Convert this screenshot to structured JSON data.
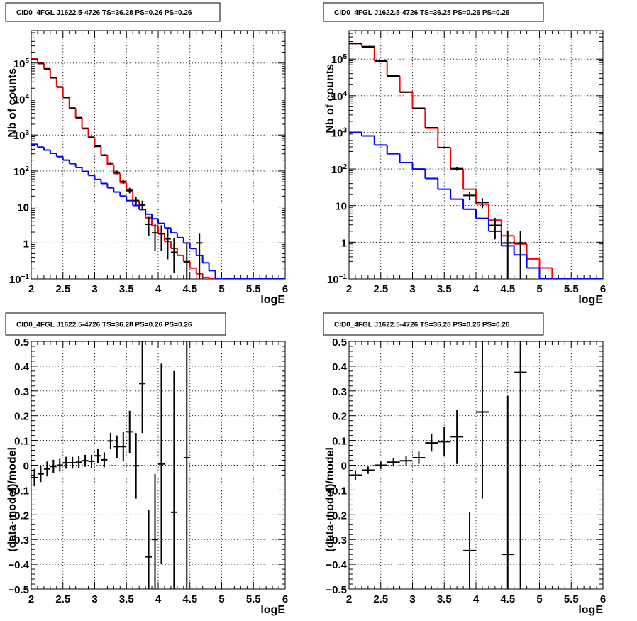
{
  "chart_data": [
    {
      "type": "line",
      "title": "CID0_4FGL J1622.5-4726 TS=36.28 PS=0.26 PS=0.26",
      "xlabel": "logE",
      "ylabel": "Nb of counts",
      "xlim": [
        2,
        6
      ],
      "ylim": [
        0.1,
        800000
      ],
      "yscale": "log",
      "grid": true,
      "x_ticks": [
        "2",
        "2.5",
        "3",
        "3.5",
        "4",
        "4.5",
        "5",
        "5.5",
        "6"
      ],
      "y_ticks": [
        {
          "value": 0.1,
          "label": "10",
          "exp": "−1"
        },
        {
          "value": 1,
          "label": "1",
          "exp": ""
        },
        {
          "value": 10,
          "label": "10",
          "exp": ""
        },
        {
          "value": 100,
          "label": "10",
          "exp": "2"
        },
        {
          "value": 1000,
          "label": "10",
          "exp": "3"
        },
        {
          "value": 10000,
          "label": "10",
          "exp": "4"
        },
        {
          "value": 100000,
          "label": "10",
          "exp": "5"
        }
      ],
      "bin_edges": [
        2.0,
        2.1,
        2.2,
        2.3,
        2.4,
        2.5,
        2.6,
        2.7,
        2.8,
        2.9,
        3.0,
        3.1,
        3.2,
        3.3,
        3.4,
        3.5,
        3.6,
        3.7,
        3.8,
        3.9,
        4.0,
        4.1,
        4.2,
        4.3,
        4.4,
        4.5,
        4.6,
        4.7,
        4.8,
        4.9,
        5.0,
        5.1,
        5.2,
        5.3,
        5.4,
        5.5,
        5.6,
        5.7,
        5.8,
        5.9,
        6.0
      ],
      "series": [
        {
          "color": "#ff0000",
          "kind": "step",
          "values": [
            130000,
            100000,
            70000,
            40000,
            22000,
            11000,
            5500,
            3000,
            1500,
            850,
            480,
            270,
            150,
            85,
            47,
            27,
            15,
            8.5,
            5,
            3,
            1.8,
            1.1,
            0.7,
            0.45,
            0.3,
            0.2,
            0.14,
            0.11,
            0.1,
            0.1,
            0.1,
            0.1,
            0.1,
            0.1,
            0.1,
            0.1,
            0.1,
            0.1,
            0.1,
            0.1
          ]
        },
        {
          "color": "#0000ff",
          "kind": "step",
          "values": [
            550,
            460,
            380,
            310,
            250,
            200,
            160,
            125,
            97,
            75,
            58,
            45,
            34,
            26,
            20,
            15,
            11,
            8.5,
            6.3,
            4.7,
            3.5,
            2.6,
            1.9,
            1.4,
            1.0,
            0.7,
            0.45,
            0.28,
            0.17,
            0.1,
            0.1,
            0.1,
            0.1,
            0.1,
            0.1,
            0.1,
            0.1,
            0.1,
            0.1,
            0.1
          ]
        },
        {
          "color": "#000000",
          "kind": "errorbar",
          "xerr": 0.05,
          "points": [
            {
              "x": 2.05,
              "y": 125000,
              "lo": 124000,
              "hi": 126000
            },
            {
              "x": 2.15,
              "y": 97000,
              "lo": 96000,
              "hi": 98000
            },
            {
              "x": 2.25,
              "y": 68000,
              "lo": 67500,
              "hi": 68500
            },
            {
              "x": 2.35,
              "y": 39000,
              "lo": 38600,
              "hi": 39400
            },
            {
              "x": 2.45,
              "y": 21500,
              "lo": 21200,
              "hi": 21800
            },
            {
              "x": 2.55,
              "y": 11000,
              "lo": 10800,
              "hi": 11200
            },
            {
              "x": 2.65,
              "y": 5600,
              "lo": 5500,
              "hi": 5700
            },
            {
              "x": 2.75,
              "y": 3050,
              "lo": 2990,
              "hi": 3110
            },
            {
              "x": 2.85,
              "y": 1540,
              "lo": 1500,
              "hi": 1580
            },
            {
              "x": 2.95,
              "y": 870,
              "lo": 840,
              "hi": 900
            },
            {
              "x": 3.05,
              "y": 490,
              "lo": 468,
              "hi": 512
            },
            {
              "x": 3.15,
              "y": 276,
              "lo": 260,
              "hi": 292
            },
            {
              "x": 3.25,
              "y": 165,
              "lo": 152,
              "hi": 178
            },
            {
              "x": 3.35,
              "y": 92,
              "lo": 82,
              "hi": 102
            },
            {
              "x": 3.45,
              "y": 51,
              "lo": 44,
              "hi": 58
            },
            {
              "x": 3.55,
              "y": 29,
              "lo": 24,
              "hi": 34
            },
            {
              "x": 3.65,
              "y": 15,
              "lo": 11.5,
              "hi": 19
            },
            {
              "x": 3.75,
              "y": 11.3,
              "lo": 8,
              "hi": 15
            },
            {
              "x": 3.85,
              "y": 3.3,
              "lo": 1.6,
              "hi": 5.3
            },
            {
              "x": 3.95,
              "y": 1.9,
              "lo": 0.6,
              "hi": 3.3
            },
            {
              "x": 4.05,
              "y": 1.8,
              "lo": 0.6,
              "hi": 3.1
            },
            {
              "x": 4.15,
              "y": 1.3,
              "lo": 0.35,
              "hi": 2.7
            },
            {
              "x": 4.25,
              "y": 0.55,
              "lo": 0.15,
              "hi": 1.35
            },
            {
              "x": 4.45,
              "y": 0.3,
              "lo": 0.1,
              "hi": 1.0
            },
            {
              "x": 4.65,
              "y": 1.0,
              "lo": 0.1,
              "hi": 1.8
            }
          ]
        }
      ]
    },
    {
      "type": "line",
      "title": "CID0_4FGL J1622.5-4726 TS=36.28 PS=0.26 PS=0.26",
      "xlabel": "logE",
      "ylabel": "Nb of counts",
      "xlim": [
        2,
        6
      ],
      "ylim": [
        0.1,
        600000
      ],
      "yscale": "log",
      "grid": true,
      "x_ticks": [
        "2",
        "2.5",
        "3",
        "3.5",
        "4",
        "4.5",
        "5",
        "5.5",
        "6"
      ],
      "y_ticks": [
        {
          "value": 0.1,
          "label": "10",
          "exp": "−1"
        },
        {
          "value": 1,
          "label": "1",
          "exp": ""
        },
        {
          "value": 10,
          "label": "10",
          "exp": ""
        },
        {
          "value": 100,
          "label": "10",
          "exp": "2"
        },
        {
          "value": 1000,
          "label": "10",
          "exp": "3"
        },
        {
          "value": 10000,
          "label": "10",
          "exp": "4"
        },
        {
          "value": 100000,
          "label": "10",
          "exp": "5"
        }
      ],
      "bin_edges": [
        2.0,
        2.2,
        2.4,
        2.6,
        2.8,
        3.0,
        3.2,
        3.4,
        3.6,
        3.8,
        4.0,
        4.2,
        4.4,
        4.6,
        4.8,
        5.0,
        5.2,
        5.4,
        5.6,
        5.8,
        6.0
      ],
      "series": [
        {
          "color": "#ff0000",
          "kind": "step",
          "values": [
            270000,
            220000,
            90000,
            35000,
            12500,
            4500,
            1300,
            380,
            100,
            28,
            11,
            4,
            1.5,
            0.9,
            0.35,
            0.2,
            0.1,
            0.1,
            0.1,
            0.1
          ]
        },
        {
          "color": "#0000ff",
          "kind": "step",
          "values": [
            1000,
            800,
            450,
            260,
            150,
            100,
            55,
            28,
            15,
            8,
            4.5,
            2.0,
            0.8,
            0.45,
            0.2,
            0.1,
            0.1,
            0.1,
            0.1,
            0.1
          ]
        },
        {
          "color": "#000000",
          "kind": "errorbar",
          "xerr": 0.1,
          "points": [
            {
              "x": 2.1,
              "y": 265000,
              "lo": 263000,
              "hi": 267000
            },
            {
              "x": 2.3,
              "y": 215000,
              "lo": 213000,
              "hi": 217000
            },
            {
              "x": 2.5,
              "y": 88000,
              "lo": 87400,
              "hi": 88600
            },
            {
              "x": 2.7,
              "y": 34500,
              "lo": 34100,
              "hi": 34900
            },
            {
              "x": 2.9,
              "y": 12600,
              "lo": 12400,
              "hi": 12800
            },
            {
              "x": 3.1,
              "y": 4550,
              "lo": 4450,
              "hi": 4650
            },
            {
              "x": 3.3,
              "y": 1330,
              "lo": 1280,
              "hi": 1380
            },
            {
              "x": 3.5,
              "y": 385,
              "lo": 360,
              "hi": 410
            },
            {
              "x": 3.7,
              "y": 102,
              "lo": 90,
              "hi": 114
            },
            {
              "x": 3.9,
              "y": 19,
              "lo": 14,
              "hi": 24
            },
            {
              "x": 4.1,
              "y": 12.3,
              "lo": 8.5,
              "hi": 16
            },
            {
              "x": 4.3,
              "y": 2.9,
              "lo": 1.2,
              "hi": 4.6
            },
            {
              "x": 4.5,
              "y": 0.95,
              "lo": 0.1,
              "hi": 2.0
            },
            {
              "x": 4.7,
              "y": 0.95,
              "lo": 0.1,
              "hi": 2.0
            }
          ]
        }
      ]
    },
    {
      "type": "scatter",
      "title": "CID0_4FGL J1622.5-4726 TS=36.28 PS=0.26 PS=0.26",
      "xlabel": "logE",
      "ylabel": "(data-model)/model",
      "xlim": [
        2,
        6
      ],
      "ylim": [
        -0.5,
        0.5
      ],
      "yscale": "linear",
      "grid": true,
      "x_ticks": [
        "2",
        "2.5",
        "3",
        "3.5",
        "4",
        "4.5",
        "5",
        "5.5",
        "6"
      ],
      "y_ticks": [
        {
          "value": -0.5,
          "label": "−0.5",
          "exp": ""
        },
        {
          "value": -0.4,
          "label": "−0.4",
          "exp": ""
        },
        {
          "value": -0.3,
          "label": "−0.3",
          "exp": ""
        },
        {
          "value": -0.2,
          "label": "−0.2",
          "exp": ""
        },
        {
          "value": -0.1,
          "label": "−0.1",
          "exp": ""
        },
        {
          "value": 0,
          "label": "0",
          "exp": ""
        },
        {
          "value": 0.1,
          "label": "0.1",
          "exp": ""
        },
        {
          "value": 0.2,
          "label": "0.2",
          "exp": ""
        },
        {
          "value": 0.3,
          "label": "0.3",
          "exp": ""
        },
        {
          "value": 0.4,
          "label": "0.4",
          "exp": ""
        },
        {
          "value": 0.5,
          "label": "0.5",
          "exp": ""
        }
      ],
      "series": [
        {
          "color": "#000000",
          "kind": "errorbar",
          "xerr": 0.05,
          "points": [
            {
              "x": 2.05,
              "y": -0.05,
              "lo": -0.085,
              "hi": -0.015
            },
            {
              "x": 2.15,
              "y": -0.035,
              "lo": -0.068,
              "hi": -0.002
            },
            {
              "x": 2.25,
              "y": -0.015,
              "lo": -0.045,
              "hi": 0.015
            },
            {
              "x": 2.35,
              "y": -0.005,
              "lo": -0.032,
              "hi": 0.022
            },
            {
              "x": 2.45,
              "y": 0.0,
              "lo": -0.025,
              "hi": 0.025
            },
            {
              "x": 2.55,
              "y": 0.01,
              "lo": -0.014,
              "hi": 0.034
            },
            {
              "x": 2.65,
              "y": 0.01,
              "lo": -0.014,
              "hi": 0.034
            },
            {
              "x": 2.75,
              "y": 0.012,
              "lo": -0.012,
              "hi": 0.036
            },
            {
              "x": 2.85,
              "y": 0.018,
              "lo": -0.006,
              "hi": 0.042
            },
            {
              "x": 2.95,
              "y": 0.016,
              "lo": -0.01,
              "hi": 0.042
            },
            {
              "x": 3.05,
              "y": 0.038,
              "lo": 0.01,
              "hi": 0.066
            },
            {
              "x": 3.15,
              "y": 0.022,
              "lo": -0.008,
              "hi": 0.052
            },
            {
              "x": 3.25,
              "y": 0.098,
              "lo": 0.065,
              "hi": 0.131
            },
            {
              "x": 3.35,
              "y": 0.075,
              "lo": 0.03,
              "hi": 0.12
            },
            {
              "x": 3.45,
              "y": 0.075,
              "lo": 0.015,
              "hi": 0.135
            },
            {
              "x": 3.55,
              "y": 0.135,
              "lo": 0.05,
              "hi": 0.22
            },
            {
              "x": 3.65,
              "y": -0.002,
              "lo": -0.135,
              "hi": 0.13
            },
            {
              "x": 3.75,
              "y": 0.33,
              "lo": 0.13,
              "hi": 0.5
            },
            {
              "x": 3.85,
              "y": -0.37,
              "lo": -0.5,
              "hi": -0.18
            },
            {
              "x": 3.95,
              "y": -0.3,
              "lo": -0.5,
              "hi": -0.035
            },
            {
              "x": 4.05,
              "y": 0.005,
              "lo": -0.4,
              "hi": 0.41
            },
            {
              "x": 4.25,
              "y": -0.19,
              "lo": -0.5,
              "hi": 0.38
            },
            {
              "x": 4.45,
              "y": 0.03,
              "lo": -0.5,
              "hi": 0.5
            }
          ]
        }
      ]
    },
    {
      "type": "scatter",
      "title": "CID0_4FGL J1622.5-4726 TS=36.28 PS=0.26 PS=0.26",
      "xlabel": "logE",
      "ylabel": "(data-model)/model",
      "xlim": [
        2,
        6
      ],
      "ylim": [
        -0.5,
        0.5
      ],
      "yscale": "linear",
      "grid": true,
      "x_ticks": [
        "2",
        "2.5",
        "3",
        "3.5",
        "4",
        "4.5",
        "5",
        "5.5",
        "6"
      ],
      "y_ticks": [
        {
          "value": -0.5,
          "label": "−0.5",
          "exp": ""
        },
        {
          "value": -0.4,
          "label": "−0.4",
          "exp": ""
        },
        {
          "value": -0.3,
          "label": "−0.3",
          "exp": ""
        },
        {
          "value": -0.2,
          "label": "−0.2",
          "exp": ""
        },
        {
          "value": -0.1,
          "label": "−0.1",
          "exp": ""
        },
        {
          "value": 0,
          "label": "0",
          "exp": ""
        },
        {
          "value": 0.1,
          "label": "0.1",
          "exp": ""
        },
        {
          "value": 0.2,
          "label": "0.2",
          "exp": ""
        },
        {
          "value": 0.3,
          "label": "0.3",
          "exp": ""
        },
        {
          "value": 0.4,
          "label": "0.4",
          "exp": ""
        },
        {
          "value": 0.5,
          "label": "0.5",
          "exp": ""
        }
      ],
      "series": [
        {
          "color": "#000000",
          "kind": "errorbar",
          "xerr": 0.1,
          "points": [
            {
              "x": 2.1,
              "y": -0.04,
              "lo": -0.06,
              "hi": -0.02
            },
            {
              "x": 2.3,
              "y": -0.02,
              "lo": -0.035,
              "hi": -0.005
            },
            {
              "x": 2.5,
              "y": 0.0,
              "lo": -0.015,
              "hi": 0.015
            },
            {
              "x": 2.7,
              "y": 0.012,
              "lo": -0.005,
              "hi": 0.029
            },
            {
              "x": 2.9,
              "y": 0.018,
              "lo": -0.002,
              "hi": 0.038
            },
            {
              "x": 3.1,
              "y": 0.03,
              "lo": 0.005,
              "hi": 0.055
            },
            {
              "x": 3.3,
              "y": 0.09,
              "lo": 0.055,
              "hi": 0.125
            },
            {
              "x": 3.5,
              "y": 0.095,
              "lo": 0.035,
              "hi": 0.155
            },
            {
              "x": 3.7,
              "y": 0.115,
              "lo": 0.005,
              "hi": 0.225
            },
            {
              "x": 3.9,
              "y": -0.345,
              "lo": -0.5,
              "hi": -0.19
            },
            {
              "x": 4.1,
              "y": 0.215,
              "lo": -0.135,
              "hi": 0.5
            },
            {
              "x": 4.5,
              "y": -0.36,
              "lo": -0.5,
              "hi": 0.28
            },
            {
              "x": 4.7,
              "y": 0.375,
              "lo": -0.5,
              "hi": 0.5
            }
          ]
        }
      ]
    }
  ]
}
